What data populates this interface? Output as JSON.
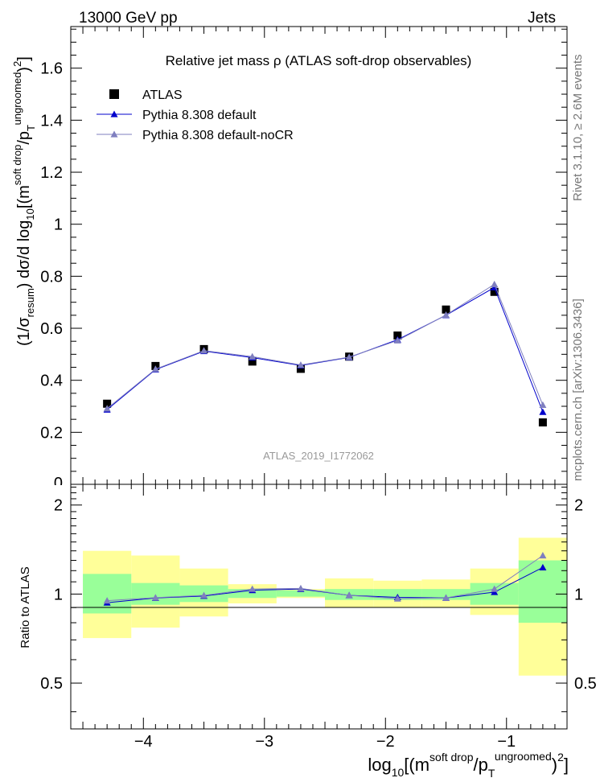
{
  "header": {
    "left": "13000 GeV pp",
    "right": "Jets"
  },
  "side_labels": {
    "top": "Rivet 3.1.10, ≥ 2.6M events",
    "bottom": "mcplots.cern.ch [arXiv:1306.3436]"
  },
  "main_panel": {
    "title": "Relative jet mass  ρ (ATLAS soft-drop observables)",
    "watermark": "ATLAS_2019_I1772062",
    "ylabel": {
      "p1": "(1/σ",
      "sub1": "resum",
      "p2": ") dσ/d log",
      "sub2": "10",
      "p3": "[(m",
      "sup1": "soft drop",
      "p4": "/p",
      "sub3": "T",
      "sup2": "ungroomed",
      "p5": ")",
      "sup3": "2",
      "p6": "]"
    },
    "yticks": [
      "0.2",
      "0.4",
      "0.6",
      "0.8",
      "1",
      "1.2",
      "1.4",
      "1.6"
    ],
    "ytick_zero": "0",
    "legend": [
      {
        "label": "ATLAS",
        "marker": "square",
        "color": "#000000"
      },
      {
        "label": "Pythia 8.308 default",
        "marker": "triangle",
        "color": "#0000cc"
      },
      {
        "label": "Pythia 8.308 default-noCR",
        "marker": "triangle",
        "color": "#7f7fbf"
      }
    ]
  },
  "ratio_panel": {
    "ylabel": "Ratio to ATLAS",
    "yticks": [
      "0.5",
      "1",
      "2"
    ]
  },
  "x_axis": {
    "ticks": [
      "−4",
      "−3",
      "−2",
      "−1"
    ],
    "label": {
      "p1": "log",
      "sub1": "10",
      "p2": "[(m",
      "sup1": "soft drop",
      "p3": "/p",
      "sub2": "T",
      "sup2": "ungroomed",
      "p4": ")",
      "sup3": "2",
      "p5": "]"
    }
  },
  "chart_data": {
    "type": "scatter",
    "x_range": [
      -4.6,
      -0.5
    ],
    "main_ylim": [
      0,
      1.76
    ],
    "ratio_ylim": [
      0.35,
      2.35
    ],
    "ratio_log_scale": true,
    "x": [
      -4.3,
      -3.9,
      -3.5,
      -3.1,
      -2.7,
      -2.3,
      -1.9,
      -1.5,
      -1.1,
      -0.7
    ],
    "bin_edges": [
      -4.5,
      -4.1,
      -3.7,
      -3.3,
      -2.9,
      -2.5,
      -2.1,
      -1.7,
      -1.3,
      -0.9,
      -0.5
    ],
    "series": [
      {
        "name": "ATLAS",
        "color": "#000000",
        "marker": "square",
        "values": [
          0.31,
          0.455,
          0.52,
          0.472,
          0.444,
          0.491,
          0.572,
          0.672,
          0.74,
          0.238
        ]
      },
      {
        "name": "Pythia 8.308 default",
        "color": "#0000cc",
        "marker": "triangle",
        "values": [
          0.287,
          0.441,
          0.512,
          0.487,
          0.457,
          0.488,
          0.556,
          0.65,
          0.757,
          0.278
        ]
      },
      {
        "name": "Pythia 8.308 default-noCR",
        "color": "#7f7fbf",
        "marker": "triangle",
        "values": [
          0.291,
          0.443,
          0.514,
          0.491,
          0.459,
          0.489,
          0.553,
          0.651,
          0.769,
          0.305
        ]
      }
    ],
    "ratio_series": [
      {
        "name": "Pythia 8.308 default",
        "color": "#0000cc",
        "values": [
          0.935,
          0.97,
          0.985,
          1.03,
          1.04,
          0.99,
          0.975,
          0.97,
          1.015,
          1.23
        ]
      },
      {
        "name": "Pythia 8.308 default-noCR",
        "color": "#7f7fbf",
        "values": [
          0.95,
          0.972,
          0.99,
          1.04,
          1.045,
          0.99,
          0.965,
          0.97,
          1.04,
          1.35
        ]
      }
    ],
    "bands": {
      "inner_color": "#99ff99",
      "outer_color": "#ffff99",
      "inner": [
        [
          0.86,
          1.17
        ],
        [
          0.92,
          1.09
        ],
        [
          0.94,
          1.07
        ],
        [
          0.97,
          1.04
        ],
        [
          0.98,
          1.03
        ],
        [
          0.955,
          1.04
        ],
        [
          0.955,
          1.04
        ],
        [
          0.955,
          1.04
        ],
        [
          0.92,
          1.09
        ],
        [
          0.8,
          1.3
        ]
      ],
      "outer": [
        [
          0.71,
          1.4
        ],
        [
          0.77,
          1.35
        ],
        [
          0.84,
          1.22
        ],
        [
          0.93,
          1.08
        ],
        [
          0.97,
          1.04
        ],
        [
          0.9,
          1.13
        ],
        [
          0.9,
          1.11
        ],
        [
          0.9,
          1.12
        ],
        [
          0.85,
          1.22
        ],
        [
          0.53,
          1.55
        ]
      ]
    }
  }
}
